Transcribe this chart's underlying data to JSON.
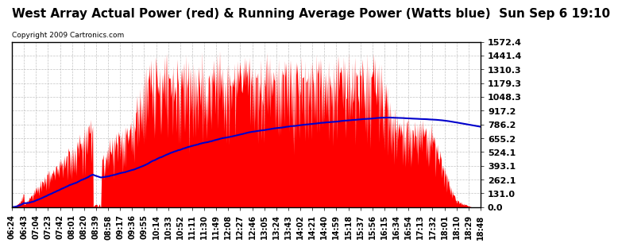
{
  "title": "West Array Actual Power (red) & Running Average Power (Watts blue)  Sun Sep 6 19:10",
  "copyright": "Copyright 2009 Cartronics.com",
  "y_ticks": [
    0.0,
    131.0,
    262.1,
    393.1,
    524.1,
    655.2,
    786.2,
    917.2,
    1048.3,
    1179.3,
    1310.3,
    1441.4,
    1572.4
  ],
  "x_labels": [
    "06:24",
    "06:43",
    "07:04",
    "07:23",
    "07:42",
    "08:01",
    "08:20",
    "08:39",
    "08:58",
    "09:17",
    "09:36",
    "09:55",
    "10:14",
    "10:33",
    "10:52",
    "11:11",
    "11:30",
    "11:49",
    "12:08",
    "12:27",
    "12:46",
    "13:05",
    "13:24",
    "13:43",
    "14:02",
    "14:21",
    "14:40",
    "14:59",
    "15:18",
    "15:37",
    "15:56",
    "16:15",
    "16:34",
    "16:54",
    "17:13",
    "17:32",
    "18:01",
    "18:10",
    "18:29",
    "18:48"
  ],
  "background_color": "#ffffff",
  "fill_color": "#ff0000",
  "line_color": "#0000cc",
  "grid_color": "#aaaaaa",
  "title_fontsize": 11,
  "ylabel_fontsize": 8,
  "xlabel_fontsize": 7,
  "max_power": 1572.4,
  "n_points": 750
}
